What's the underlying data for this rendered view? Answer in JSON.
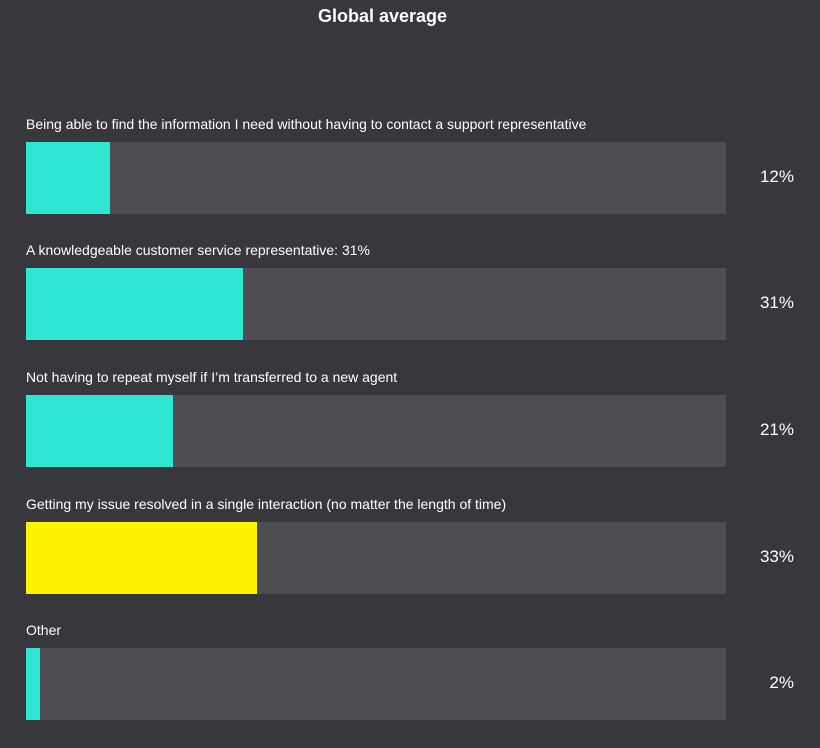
{
  "chart_data": {
    "type": "bar",
    "orientation": "horizontal",
    "title": "Global average",
    "xlim": [
      0,
      100
    ],
    "categories": [
      "Being able to find the information I need without having to contact a support representative",
      "A knowledgeable customer service representative: 31%",
      "Not having to repeat myself if I’m transferred to a new agent",
      "Getting my issue resolved in a single interaction (no matter the length of time)",
      "Other"
    ],
    "values": [
      12,
      31,
      21,
      33,
      2
    ],
    "value_labels": [
      "12%",
      "31%",
      "21%",
      "33%",
      "2%"
    ],
    "highlight_index": 3,
    "colors": {
      "bar": "#2ee6d3",
      "highlight": "#fff200",
      "track": "#4e4d52",
      "background": "#38383c"
    },
    "grid": false,
    "legend": "none"
  }
}
